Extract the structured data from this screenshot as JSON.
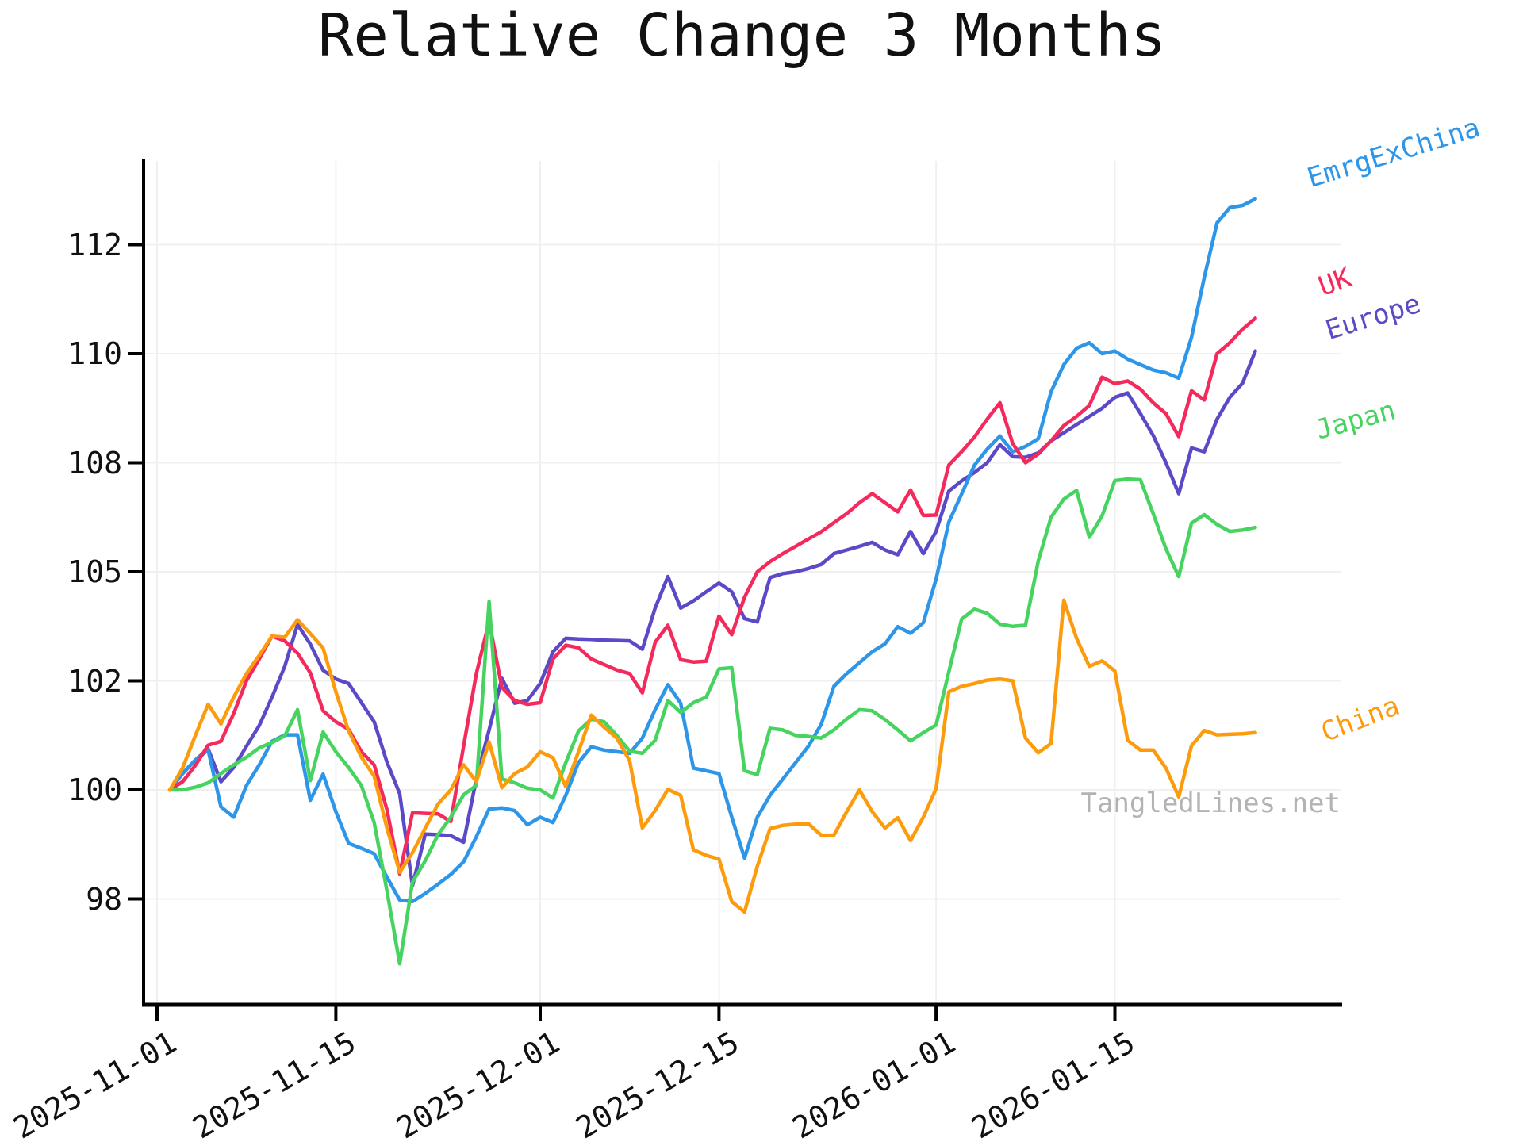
{
  "title": "Relative Change 3 Months",
  "watermark": "TangledLines.net",
  "chart_data": {
    "type": "line",
    "title": "Relative Change 3 Months",
    "xlabel": "",
    "ylabel": "",
    "grid": true,
    "legend_position": "right-edge-labels",
    "yticks": [
      98,
      100,
      102,
      105,
      108,
      110,
      112
    ],
    "xticks": [
      "2025-11-01",
      "2025-11-15",
      "2025-12-01",
      "2025-12-15",
      "2026-01-01",
      "2026-01-15"
    ],
    "ylim_note": "custom non-linear axis: listed yticks are evenly spaced",
    "dates": [
      "2025-11-02",
      "2025-11-03",
      "2025-11-04",
      "2025-11-05",
      "2025-11-06",
      "2025-11-07",
      "2025-11-08",
      "2025-11-09",
      "2025-11-10",
      "2025-11-11",
      "2025-11-12",
      "2025-11-13",
      "2025-11-14",
      "2025-11-15",
      "2025-11-16",
      "2025-11-17",
      "2025-11-18",
      "2025-11-19",
      "2025-11-20",
      "2025-11-21",
      "2025-11-22",
      "2025-11-23",
      "2025-11-24",
      "2025-11-25",
      "2025-11-26",
      "2025-11-27",
      "2025-11-28",
      "2025-11-29",
      "2025-11-30",
      "2025-12-01",
      "2025-12-02",
      "2025-12-03",
      "2025-12-04",
      "2025-12-05",
      "2025-12-06",
      "2025-12-07",
      "2025-12-08",
      "2025-12-09",
      "2025-12-10",
      "2025-12-11",
      "2025-12-12",
      "2025-12-13",
      "2025-12-14",
      "2025-12-15",
      "2025-12-16",
      "2025-12-17",
      "2025-12-18",
      "2025-12-19",
      "2025-12-20",
      "2025-12-21",
      "2025-12-22",
      "2025-12-23",
      "2025-12-24",
      "2025-12-25",
      "2025-12-26",
      "2025-12-27",
      "2025-12-28",
      "2025-12-29",
      "2025-12-30",
      "2025-12-31",
      "2026-01-01",
      "2026-01-02",
      "2026-01-03",
      "2026-01-04",
      "2026-01-05",
      "2026-01-06",
      "2026-01-07",
      "2026-01-08",
      "2026-01-09",
      "2026-01-10",
      "2026-01-11",
      "2026-01-12",
      "2026-01-13",
      "2026-01-14",
      "2026-01-15",
      "2026-01-16",
      "2026-01-17",
      "2026-01-18",
      "2026-01-19",
      "2026-01-20",
      "2026-01-21",
      "2026-01-22",
      "2026-01-23",
      "2026-01-24",
      "2026-01-25",
      "2026-01-26"
    ],
    "series": [
      {
        "name": "EmrgExChina",
        "color": "#2D96E8",
        "values": [
          100.0,
          100.3,
          100.55,
          100.73,
          99.69,
          99.5,
          100.08,
          100.46,
          100.89,
          101.01,
          101.01,
          99.81,
          100.29,
          99.6,
          99.02,
          98.93,
          98.83,
          98.4,
          97.98,
          97.95,
          98.1,
          98.27,
          98.45,
          98.68,
          99.14,
          99.65,
          99.67,
          99.62,
          99.36,
          99.5,
          99.4,
          99.9,
          100.5,
          100.79,
          100.73,
          100.7,
          100.67,
          100.95,
          101.47,
          101.93,
          101.59,
          100.4,
          100.35,
          100.3,
          99.5,
          98.75,
          99.5,
          99.9,
          100.2,
          100.5,
          100.8,
          101.2,
          101.9,
          102.2,
          102.5,
          102.8,
          103.02,
          103.49,
          103.31,
          103.6,
          104.8,
          106.37,
          107.14,
          107.93,
          108.25,
          108.49,
          108.2,
          108.3,
          108.44,
          109.3,
          109.8,
          110.1,
          110.2,
          110.0,
          110.05,
          109.9,
          109.8,
          109.7,
          109.65,
          109.55,
          110.3,
          111.4,
          112.4,
          112.68,
          112.72,
          112.84
        ]
      },
      {
        "name": "UK",
        "color": "#F42A5C",
        "values": [
          100.0,
          100.15,
          100.45,
          100.82,
          100.89,
          101.4,
          102.0,
          102.6,
          103.23,
          103.1,
          102.76,
          102.22,
          101.45,
          101.25,
          101.11,
          100.7,
          100.46,
          99.64,
          98.46,
          99.58,
          99.57,
          99.56,
          99.42,
          100.8,
          102.2,
          103.63,
          101.88,
          101.64,
          101.57,
          101.6,
          102.6,
          102.98,
          102.91,
          102.6,
          102.45,
          102.3,
          102.2,
          101.78,
          103.06,
          103.53,
          102.58,
          102.52,
          102.54,
          103.78,
          103.27,
          104.3,
          105.0,
          105.28,
          105.5,
          105.7,
          105.9,
          106.1,
          106.35,
          106.6,
          106.9,
          107.15,
          106.9,
          106.65,
          107.25,
          106.55,
          106.56,
          107.94,
          108.2,
          108.47,
          108.8,
          109.1,
          108.35,
          108.0,
          108.16,
          108.4,
          108.68,
          108.85,
          109.05,
          109.57,
          109.45,
          109.5,
          109.35,
          109.1,
          108.9,
          108.48,
          109.32,
          109.15,
          110.0,
          110.2,
          110.45,
          110.65
        ]
      },
      {
        "name": "Europe",
        "color": "#5A4AC8",
        "values": [
          100.0,
          100.3,
          100.55,
          100.75,
          100.15,
          100.41,
          100.8,
          101.18,
          101.7,
          102.4,
          103.55,
          103.01,
          102.29,
          102.05,
          101.95,
          101.6,
          101.25,
          100.51,
          99.93,
          98.24,
          99.19,
          99.18,
          99.16,
          99.04,
          100.2,
          101.1,
          102.07,
          101.59,
          101.64,
          101.95,
          102.8,
          103.17,
          103.15,
          103.14,
          103.12,
          103.11,
          103.1,
          102.87,
          104.0,
          104.87,
          104.0,
          104.2,
          104.45,
          104.69,
          104.45,
          103.71,
          103.62,
          104.84,
          104.95,
          105.0,
          105.09,
          105.2,
          105.5,
          105.6,
          105.7,
          105.81,
          105.6,
          105.47,
          106.11,
          105.5,
          106.11,
          107.22,
          107.5,
          107.73,
          108.0,
          108.33,
          108.11,
          108.1,
          108.18,
          108.4,
          108.55,
          108.7,
          108.85,
          109.0,
          109.2,
          109.28,
          108.9,
          108.5,
          108.0,
          107.15,
          108.27,
          108.2,
          108.8,
          109.2,
          109.46,
          110.05
        ]
      },
      {
        "name": "Japan",
        "color": "#46D35F",
        "values": [
          100.0,
          100.0,
          100.05,
          100.13,
          100.3,
          100.46,
          100.6,
          100.77,
          100.87,
          100.99,
          101.47,
          100.17,
          101.06,
          100.7,
          100.41,
          100.08,
          99.4,
          98.15,
          96.81,
          98.31,
          98.7,
          99.18,
          99.5,
          99.91,
          100.08,
          104.18,
          100.2,
          100.13,
          100.03,
          100.0,
          99.85,
          100.5,
          101.08,
          101.3,
          101.25,
          101.0,
          100.71,
          100.67,
          100.91,
          101.64,
          101.42,
          101.6,
          101.7,
          102.33,
          102.36,
          100.35,
          100.28,
          101.13,
          101.1,
          101.0,
          100.98,
          100.95,
          101.1,
          101.3,
          101.47,
          101.45,
          101.29,
          101.1,
          100.9,
          101.05,
          101.19,
          102.25,
          103.7,
          103.97,
          103.86,
          103.56,
          103.5,
          103.53,
          105.3,
          106.5,
          107.0,
          107.24,
          105.95,
          106.54,
          107.51,
          107.55,
          107.53,
          106.6,
          105.63,
          104.87,
          106.34,
          106.57,
          106.3,
          106.11,
          106.15,
          106.22
        ]
      },
      {
        "name": "China",
        "color": "#FC9B0C",
        "values": [
          100.0,
          100.4,
          101.0,
          101.57,
          101.21,
          101.7,
          102.2,
          102.7,
          103.23,
          103.2,
          103.68,
          103.3,
          102.9,
          101.8,
          101.08,
          100.6,
          100.25,
          99.3,
          98.49,
          98.85,
          99.3,
          99.74,
          100.0,
          100.46,
          100.15,
          100.88,
          100.04,
          100.3,
          100.42,
          100.7,
          100.59,
          100.06,
          100.7,
          101.37,
          101.15,
          100.95,
          100.54,
          99.3,
          99.62,
          100.01,
          99.9,
          98.9,
          98.8,
          98.73,
          97.95,
          97.76,
          98.6,
          99.29,
          99.35,
          99.37,
          99.38,
          99.17,
          99.17,
          99.6,
          100.0,
          99.6,
          99.3,
          99.49,
          99.07,
          99.5,
          100.02,
          101.8,
          101.9,
          101.95,
          102.02,
          102.05,
          102.0,
          100.95,
          100.68,
          100.85,
          104.22,
          103.17,
          102.4,
          102.55,
          102.27,
          100.91,
          100.73,
          100.73,
          100.4,
          99.87,
          100.81,
          101.09,
          101.01,
          101.02,
          101.03,
          101.05
        ]
      }
    ]
  }
}
